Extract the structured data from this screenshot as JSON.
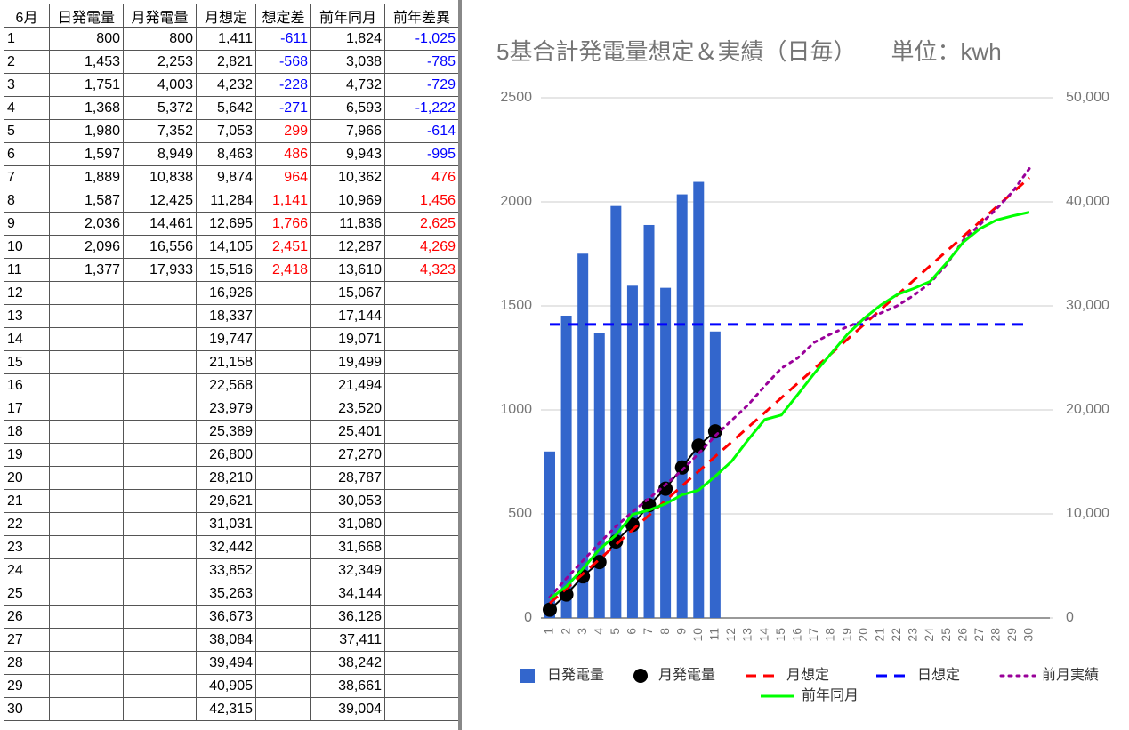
{
  "table": {
    "header": [
      "6月",
      "日発電量",
      "月発電量",
      "月想定",
      "想定差",
      "前年同月",
      "前年差異"
    ],
    "rows": [
      [
        "1",
        "800",
        "800",
        "1,411",
        "-611",
        "1,824",
        "-1,025"
      ],
      [
        "2",
        "1,453",
        "2,253",
        "2,821",
        "-568",
        "3,038",
        "-785"
      ],
      [
        "3",
        "1,751",
        "4,003",
        "4,232",
        "-228",
        "4,732",
        "-729"
      ],
      [
        "4",
        "1,368",
        "5,372",
        "5,642",
        "-271",
        "6,593",
        "-1,222"
      ],
      [
        "5",
        "1,980",
        "7,352",
        "7,053",
        "299",
        "7,966",
        "-614"
      ],
      [
        "6",
        "1,597",
        "8,949",
        "8,463",
        "486",
        "9,943",
        "-995"
      ],
      [
        "7",
        "1,889",
        "10,838",
        "9,874",
        "964",
        "10,362",
        "476"
      ],
      [
        "8",
        "1,587",
        "12,425",
        "11,284",
        "1,141",
        "10,969",
        "1,456"
      ],
      [
        "9",
        "2,036",
        "14,461",
        "12,695",
        "1,766",
        "11,836",
        "2,625"
      ],
      [
        "10",
        "2,096",
        "16,556",
        "14,105",
        "2,451",
        "12,287",
        "4,269"
      ],
      [
        "11",
        "1,377",
        "17,933",
        "15,516",
        "2,418",
        "13,610",
        "4,323"
      ],
      [
        "12",
        null,
        null,
        "16,926",
        null,
        "15,067",
        null
      ],
      [
        "13",
        null,
        null,
        "18,337",
        null,
        "17,144",
        null
      ],
      [
        "14",
        null,
        null,
        "19,747",
        null,
        "19,071",
        null
      ],
      [
        "15",
        null,
        null,
        "21,158",
        null,
        "19,499",
        null
      ],
      [
        "16",
        null,
        null,
        "22,568",
        null,
        "21,494",
        null
      ],
      [
        "17",
        null,
        null,
        "23,979",
        null,
        "23,520",
        null
      ],
      [
        "18",
        null,
        null,
        "25,389",
        null,
        "25,401",
        null
      ],
      [
        "19",
        null,
        null,
        "26,800",
        null,
        "27,270",
        null
      ],
      [
        "20",
        null,
        null,
        "28,210",
        null,
        "28,787",
        null
      ],
      [
        "21",
        null,
        null,
        "29,621",
        null,
        "30,053",
        null
      ],
      [
        "22",
        null,
        null,
        "31,031",
        null,
        "31,080",
        null
      ],
      [
        "23",
        null,
        null,
        "32,442",
        null,
        "31,668",
        null
      ],
      [
        "24",
        null,
        null,
        "33,852",
        null,
        "32,349",
        null
      ],
      [
        "25",
        null,
        null,
        "35,263",
        null,
        "34,144",
        null
      ],
      [
        "26",
        null,
        null,
        "36,673",
        null,
        "36,126",
        null
      ],
      [
        "27",
        null,
        null,
        "38,084",
        null,
        "37,411",
        null
      ],
      [
        "28",
        null,
        null,
        "39,494",
        null,
        "38,242",
        null
      ],
      [
        "29",
        null,
        null,
        "40,905",
        null,
        "38,661",
        null
      ],
      [
        "30",
        null,
        null,
        "42,315",
        null,
        "39,004",
        null
      ]
    ]
  },
  "chart_data": {
    "type": "bar",
    "title": "5基合計発電量想定＆実績（日毎）　　単位：kwh",
    "categories": [
      "1",
      "2",
      "3",
      "4",
      "5",
      "6",
      "7",
      "8",
      "9",
      "10",
      "11",
      "12",
      "13",
      "14",
      "15",
      "16",
      "17",
      "18",
      "19",
      "20",
      "21",
      "22",
      "23",
      "24",
      "25",
      "26",
      "27",
      "28",
      "29",
      "30"
    ],
    "ylim": [
      0,
      2500
    ],
    "yticks": [
      0,
      500,
      1000,
      1500,
      2000,
      2500
    ],
    "y2lim": [
      0,
      50000
    ],
    "y2ticks": [
      0,
      {
        "value": 10000,
        "label": "10,000"
      },
      {
        "value": 20000,
        "label": "20,000"
      },
      {
        "value": 30000,
        "label": "30,000"
      },
      {
        "value": 40000,
        "label": "40,000"
      },
      {
        "value": 50000,
        "label": "50,000"
      }
    ],
    "grid": true,
    "legend": "bottom",
    "series": [
      {
        "name": "日発電量",
        "type": "bar",
        "color": "#3366cc",
        "values": [
          800,
          1453,
          1751,
          1368,
          1980,
          1597,
          1889,
          1587,
          2036,
          2096,
          1377,
          null,
          null,
          null,
          null,
          null,
          null,
          null,
          null,
          null,
          null,
          null,
          null,
          null,
          null,
          null,
          null,
          null,
          null,
          null
        ]
      },
      {
        "name": "月発電量",
        "type": "line",
        "marker": true,
        "style": "solid",
        "color": "#000000",
        "axis": "y2",
        "values": [
          800,
          2253,
          4003,
          5372,
          7352,
          8949,
          10838,
          12425,
          14461,
          16556,
          17933,
          null,
          null,
          null,
          null,
          null,
          null,
          null,
          null,
          null,
          null,
          null,
          null,
          null,
          null,
          null,
          null,
          null,
          null,
          null
        ]
      },
      {
        "name": "月想定",
        "type": "line",
        "style": "dashed",
        "color": "#ff0000",
        "axis": "y2",
        "values": [
          1411,
          2821,
          4232,
          5642,
          7053,
          8463,
          9874,
          11284,
          12695,
          14105,
          15516,
          16926,
          18337,
          19747,
          21158,
          22568,
          23979,
          25389,
          26800,
          28210,
          29621,
          31031,
          32442,
          33852,
          35263,
          36673,
          38084,
          39494,
          40905,
          42315
        ]
      },
      {
        "name": "日想定",
        "type": "line",
        "style": "dashed",
        "color": "#0000ff",
        "values": [
          1411,
          1411,
          1411,
          1411,
          1411,
          1411,
          1411,
          1411,
          1411,
          1411,
          1411,
          1411,
          1411,
          1411,
          1411,
          1411,
          1411,
          1411,
          1411,
          1411,
          1411,
          1411,
          1411,
          1411,
          1411,
          1411,
          1411,
          1411,
          1411,
          1411
        ]
      },
      {
        "name": "前月実績",
        "type": "line",
        "style": "dotted",
        "color": "#990099",
        "axis": "y2",
        "values": [
          2000,
          3800,
          5500,
          7200,
          8800,
          10200,
          11500,
          12800,
          14200,
          15800,
          17500,
          19000,
          20500,
          22300,
          24000,
          25000,
          26500,
          27300,
          28000,
          28600,
          29300,
          30000,
          31000,
          32200,
          34000,
          36300,
          37800,
          39300,
          41000,
          43200
        ]
      },
      {
        "name": "前年同月",
        "type": "line",
        "style": "solid",
        "color": "#00ff00",
        "axis": "y2",
        "values": [
          1824,
          3038,
          4732,
          6593,
          7966,
          9943,
          10362,
          10969,
          11836,
          12287,
          13610,
          15067,
          17144,
          19071,
          19499,
          21494,
          23520,
          25401,
          27270,
          28787,
          30053,
          31080,
          31668,
          32349,
          34144,
          36126,
          37411,
          38242,
          38661,
          39004
        ]
      }
    ]
  }
}
